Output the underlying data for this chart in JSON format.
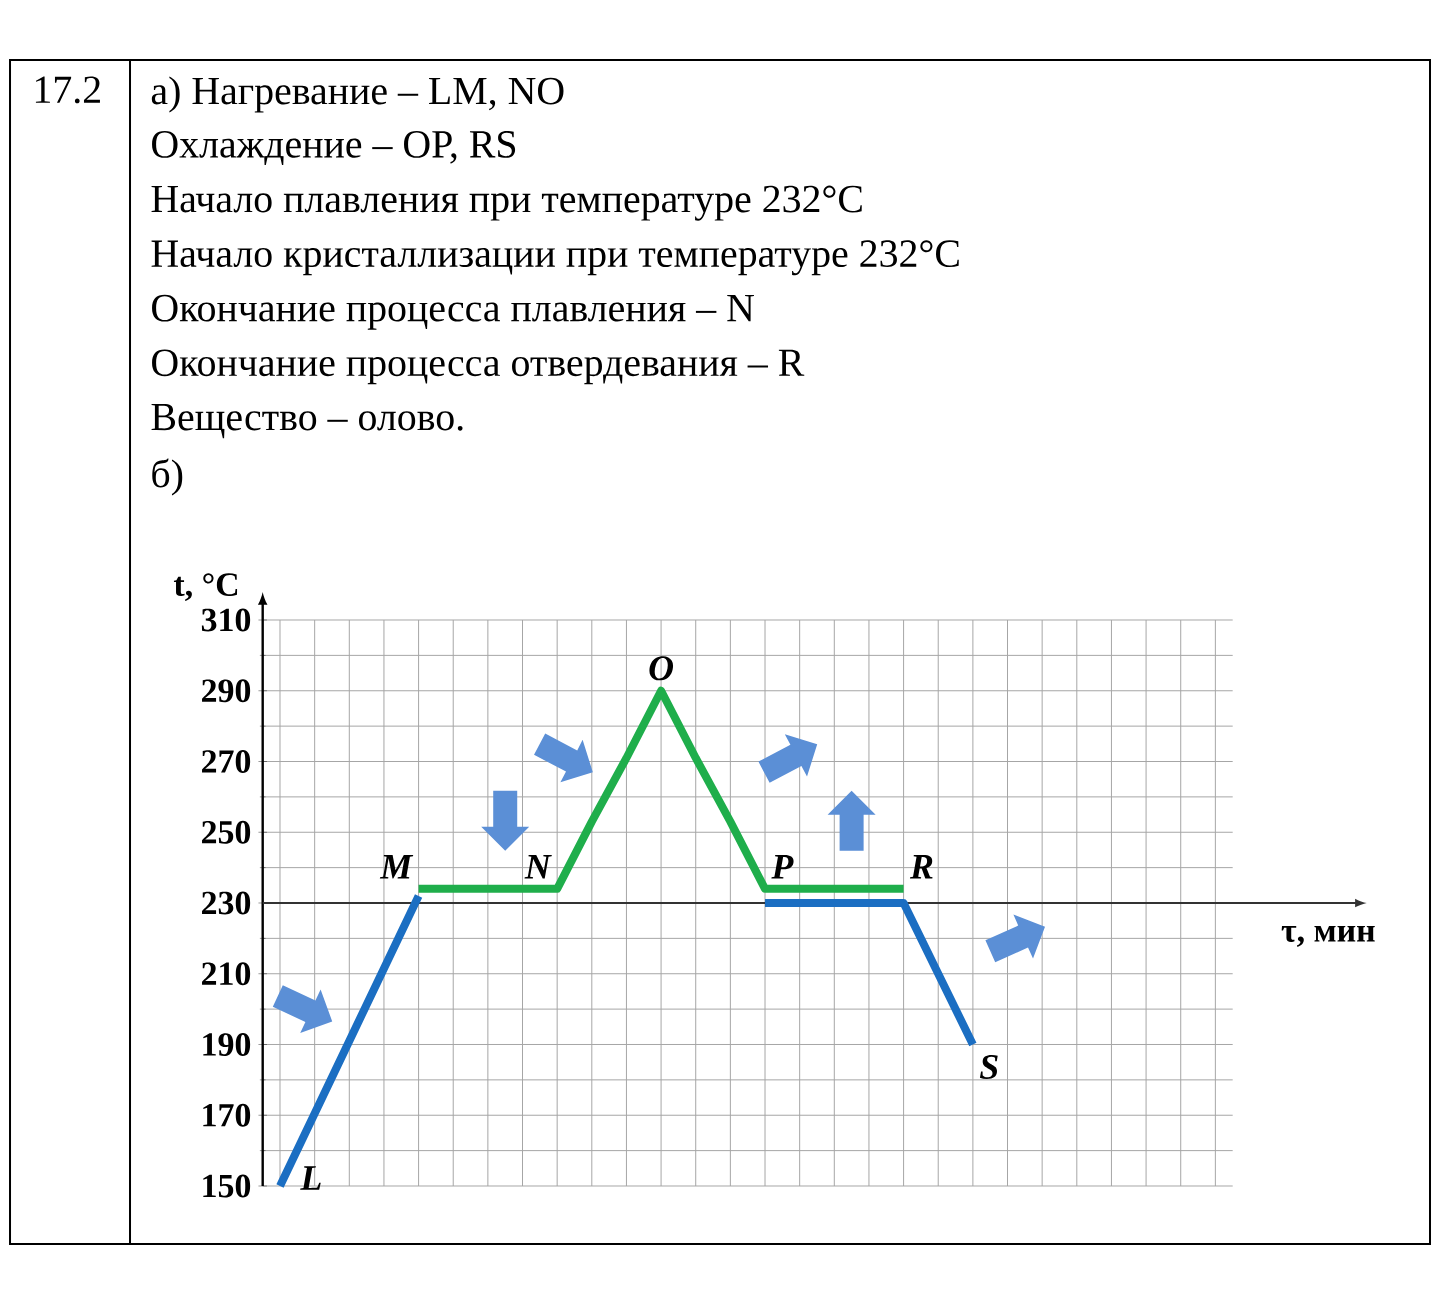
{
  "chart_data": {
    "type": "line",
    "xlabel": "τ, мин",
    "ylabel": "t, °C",
    "categories": [
      null,
      null,
      null,
      null,
      null,
      null,
      null,
      null,
      null,
      null,
      null,
      null,
      null,
      null,
      null,
      null,
      null,
      null,
      null,
      null,
      null,
      null,
      null,
      null,
      null,
      null,
      null,
      null
    ],
    "series": [
      {
        "color": "#1b6ec2",
        "values": [
          150,
          170.5,
          191,
          211.5,
          232,
          null,
          null,
          null,
          null,
          null,
          null,
          null,
          null,
          null,
          230,
          230,
          230,
          230,
          230,
          210,
          190,
          null,
          null,
          null,
          null,
          null,
          null,
          null
        ]
      },
      {
        "color": "#1fae4b",
        "values": [
          null,
          null,
          null,
          null,
          234,
          234,
          234,
          234,
          234,
          253,
          271,
          290,
          271,
          253,
          234,
          234,
          234,
          234,
          234,
          null,
          null,
          null,
          null,
          null,
          null,
          null,
          null,
          null
        ]
      }
    ],
    "ylim": [
      150,
      310
    ],
    "yticks": [
      150,
      170,
      190,
      210,
      230,
      250,
      270,
      290,
      310
    ],
    "grid": true,
    "tick_labels": "y",
    "marker": "none",
    "line_style": "solid",
    "ref_lines": [
      {
        "axis": "y",
        "value": 230,
        "color": "#333333"
      }
    ],
    "annotations": [
      "17.2",
      "а) Нагревание – LM, NO",
      "Охлаждение – OP, RS",
      "Начало плавления при температуре 232°C",
      "Начало кристаллизации при температуре 232°C",
      "Окончание процесса плавления – N",
      "Окончание процесса отвердевания – R",
      "Вещество – олово.",
      "б)",
      "L",
      "M",
      "N",
      "O",
      "P",
      "R",
      "S"
    ]
  }
}
